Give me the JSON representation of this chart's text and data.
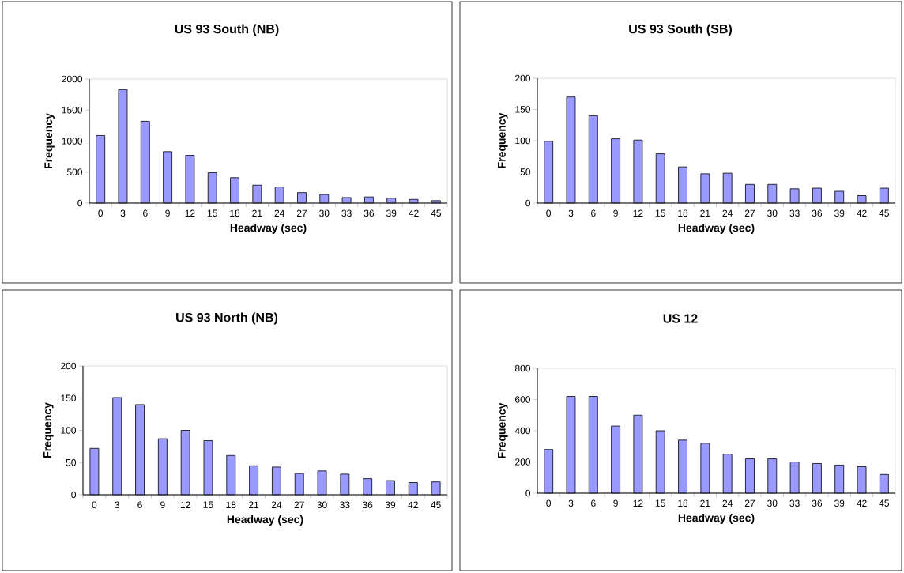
{
  "chart_data": [
    {
      "type": "bar",
      "title": "US 93 South (NB)",
      "xlabel": "Headway (sec)",
      "ylabel": "Frequency",
      "categories": [
        "0",
        "3",
        "6",
        "9",
        "12",
        "15",
        "18",
        "21",
        "24",
        "27",
        "30",
        "33",
        "36",
        "39",
        "42",
        "45"
      ],
      "values": [
        1090,
        1830,
        1320,
        830,
        770,
        490,
        410,
        290,
        260,
        170,
        140,
        90,
        100,
        80,
        60,
        40
      ],
      "color": "#9999ff",
      "ylim": [
        0,
        2000
      ],
      "yticks": [
        0,
        500,
        1000,
        1500,
        2000
      ]
    },
    {
      "type": "bar",
      "title": "US 93 South (SB)",
      "xlabel": "Headway (sec)",
      "ylabel": "Frequency",
      "categories": [
        "0",
        "3",
        "6",
        "9",
        "12",
        "15",
        "18",
        "21",
        "24",
        "27",
        "30",
        "33",
        "36",
        "39",
        "42",
        "45"
      ],
      "values": [
        99,
        170,
        140,
        103,
        101,
        79,
        58,
        47,
        48,
        30,
        30,
        23,
        24,
        19,
        12,
        24
      ],
      "color": "#9999ff",
      "ylim": [
        0,
        200
      ],
      "yticks": [
        0,
        50,
        100,
        150,
        200
      ]
    },
    {
      "type": "bar",
      "title": "US 93 North (NB)",
      "xlabel": "Headway (sec)",
      "ylabel": "Frequency",
      "categories": [
        "0",
        "3",
        "6",
        "9",
        "12",
        "15",
        "18",
        "21",
        "24",
        "27",
        "30",
        "33",
        "36",
        "39",
        "42",
        "45"
      ],
      "values": [
        72,
        151,
        140,
        87,
        100,
        84,
        61,
        45,
        43,
        33,
        37,
        32,
        25,
        22,
        19,
        20
      ],
      "color": "#9999ff",
      "ylim": [
        0,
        200
      ],
      "yticks": [
        0,
        50,
        100,
        150,
        200
      ]
    },
    {
      "type": "bar",
      "title": "US 12",
      "xlabel": "Headway (sec)",
      "ylabel": "Frequency",
      "categories": [
        "0",
        "3",
        "6",
        "9",
        "12",
        "15",
        "18",
        "21",
        "24",
        "27",
        "30",
        "33",
        "36",
        "39",
        "42",
        "45"
      ],
      "values": [
        280,
        620,
        620,
        430,
        500,
        400,
        340,
        320,
        250,
        220,
        220,
        200,
        190,
        180,
        170,
        120
      ],
      "color": "#9999ff",
      "ylim": [
        0,
        800
      ],
      "yticks": [
        0,
        200,
        400,
        600,
        800
      ]
    }
  ]
}
